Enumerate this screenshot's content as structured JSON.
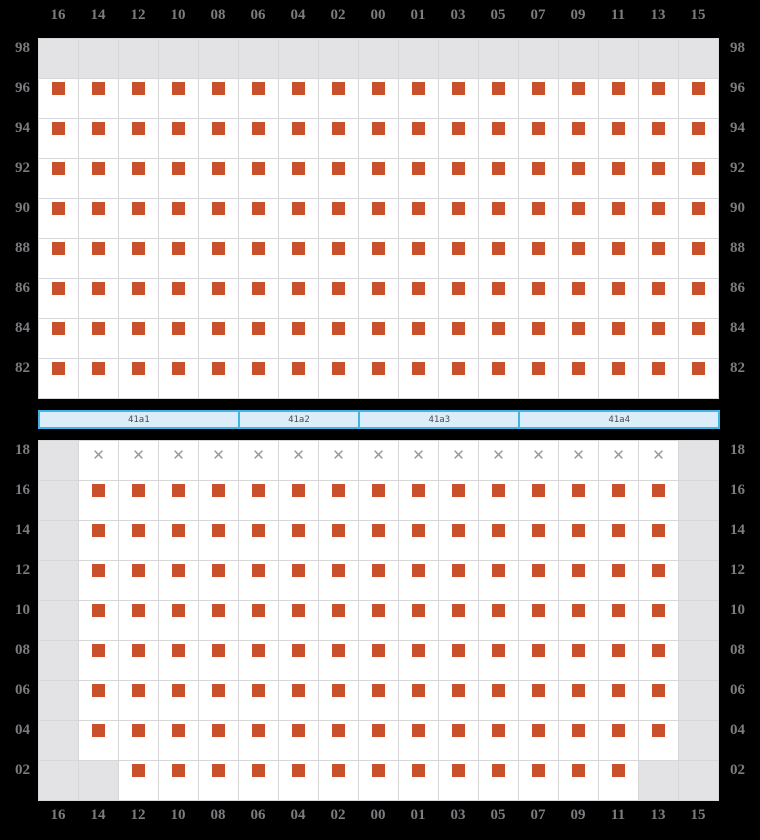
{
  "columns": [
    "16",
    "14",
    "12",
    "10",
    "08",
    "06",
    "04",
    "02",
    "00",
    "01",
    "03",
    "05",
    "07",
    "09",
    "11",
    "13",
    "15"
  ],
  "top_grid": {
    "row_labels": [
      "98",
      "96",
      "94",
      "92",
      "90",
      "88",
      "86",
      "84",
      "82"
    ],
    "rows": [
      "EEEEEEEEEEEEEEEEE",
      "SSSSSSSSSSSSSSSSS",
      "SSSSSSSSSSSSSSSSS",
      "SSSSSSSSSSSSSSSSS",
      "SSSSSSSSSSSSSSSSS",
      "SSSSSSSSSSSSSSSSS",
      "SSSSSSSSSSSSSSSSS",
      "SSSSSSSSSSSSSSSSS",
      "SSSSSSSSSSSSSSSSS"
    ]
  },
  "sections_bar": {
    "segments": [
      {
        "label": "41a1",
        "col_span": 5
      },
      {
        "label": "41a2",
        "col_span": 3
      },
      {
        "label": "41a3",
        "col_span": 4
      },
      {
        "label": "41a4",
        "col_span": 5
      }
    ]
  },
  "bottom_grid": {
    "row_labels": [
      "18",
      "16",
      "14",
      "12",
      "10",
      "08",
      "06",
      "04",
      "02"
    ],
    "rows": [
      "EXXXXXXXXXXXXXXXE",
      "ESSSSSSSSSSSSSSSE",
      "ESSSSSSSSSSSSSSSE",
      "ESSSSSSSSSSSSSSSE",
      "ESSSSSSSSSSSSSSSE",
      "ESSSSSSSSSSSSSSSE",
      "ESSSSSSSSSSSSSSSE",
      "ESSSSSSSSSSSSSSSE",
      "EESSSSSSSSSSSSSEE"
    ]
  },
  "cell_states": {
    "S": "seat-marker",
    "X": "unavailable",
    "E": "no-cell"
  },
  "glyphs": {
    "unavailable": "✕"
  },
  "colors": {
    "background": "#000000",
    "cell": "#ffffff",
    "no_cell": "#e3e3e5",
    "gridline": "#d7d7da",
    "seat": "#c8502b",
    "unavailable": "#9a9a9e",
    "axis_label": "#7b7c80",
    "bar_fill": "#dcedfa",
    "bar_border": "#42b4e6",
    "bar_label": "#4b4b4b"
  }
}
